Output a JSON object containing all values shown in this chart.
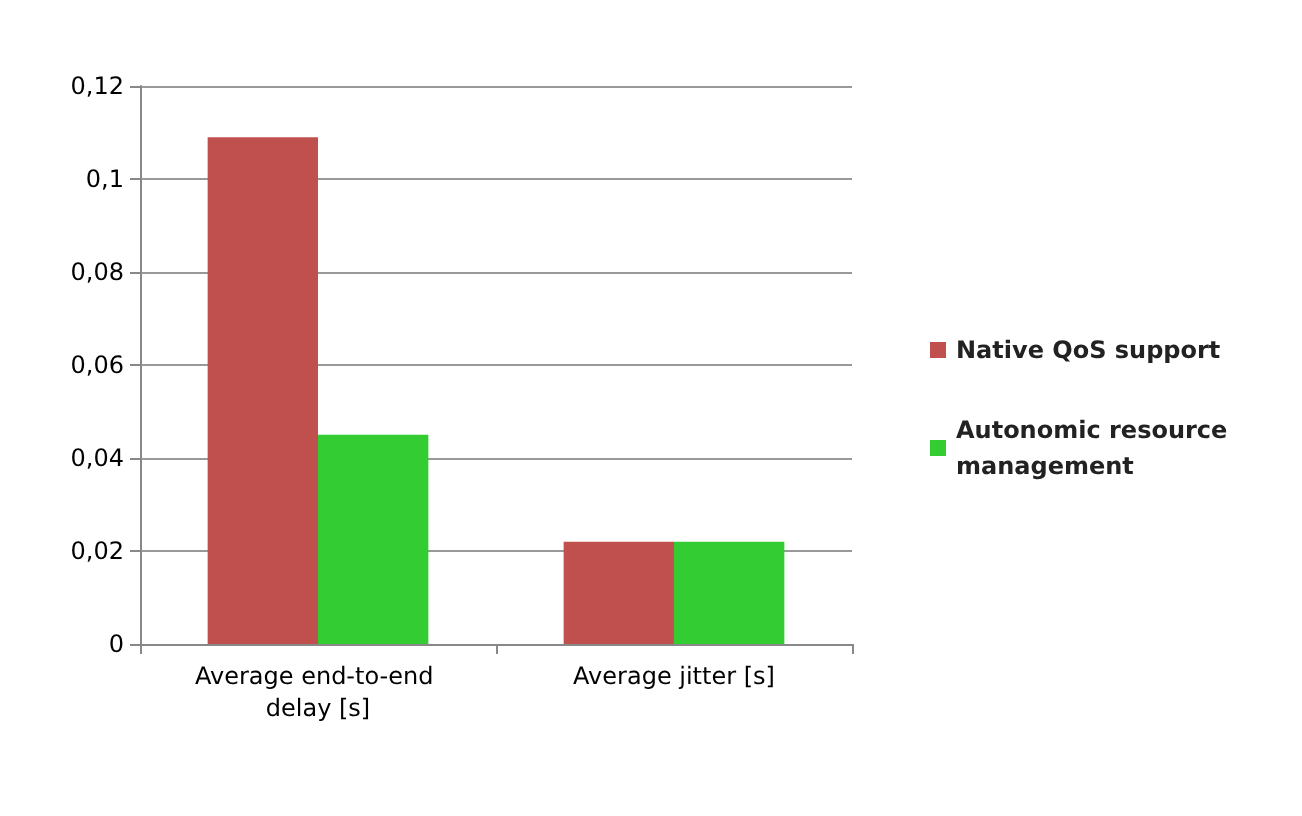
{
  "chart_data": {
    "type": "bar",
    "categories": [
      "Average end-to-end delay [s]",
      "Average jitter [s]"
    ],
    "series": [
      {
        "name": "Native QoS support",
        "color": "#c0504d",
        "values": [
          0.109,
          0.022
        ]
      },
      {
        "name": "Autonomic resource management",
        "color": "#33cc33",
        "values": [
          0.045,
          0.022
        ]
      }
    ],
    "ylim": [
      0,
      0.12
    ],
    "yticks": [
      0,
      {
        "value": 0.02,
        "label": "0,02"
      },
      {
        "value": 0.04,
        "label": "0,04"
      },
      {
        "value": 0.06,
        "label": "0,06"
      },
      {
        "value": 0.08,
        "label": "0,08"
      },
      {
        "value": 0.1,
        "label": "0,1"
      },
      {
        "value": 0.12,
        "label": "0,12"
      }
    ],
    "grid": "y",
    "legend": "right"
  }
}
